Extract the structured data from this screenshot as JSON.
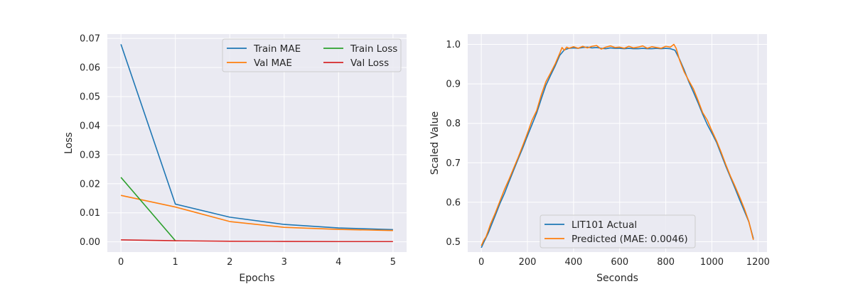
{
  "chart_data": [
    {
      "type": "line",
      "title": "",
      "xlabel": "Epochs",
      "ylabel": "Loss",
      "xlim": [
        -0.25,
        5.25
      ],
      "ylim": [
        -0.0035,
        0.0715
      ],
      "xticks": [
        0,
        1,
        2,
        3,
        4,
        5
      ],
      "yticks": [
        0.0,
        0.01,
        0.02,
        0.03,
        0.04,
        0.05,
        0.06,
        0.07
      ],
      "ytick_labels": [
        "0.00",
        "0.01",
        "0.02",
        "0.03",
        "0.04",
        "0.05",
        "0.06",
        "0.07"
      ],
      "grid": true,
      "legend": {
        "placement": "top-right",
        "columns": 2
      },
      "series": [
        {
          "name": "Train MAE",
          "color": "#1f77b4",
          "x": [
            0,
            1,
            2,
            3,
            4,
            5
          ],
          "y": [
            0.068,
            0.013,
            0.0085,
            0.006,
            0.0048,
            0.0042
          ]
        },
        {
          "name": "Val MAE",
          "color": "#ff7f0e",
          "x": [
            0,
            1,
            2,
            3,
            4,
            5
          ],
          "y": [
            0.016,
            0.012,
            0.007,
            0.005,
            0.0043,
            0.0039
          ]
        },
        {
          "name": "Train Loss",
          "color": "#2ca02c",
          "x": [
            0,
            1
          ],
          "y": [
            0.0222,
            0.0004
          ]
        },
        {
          "name": "Val Loss",
          "color": "#d62728",
          "x": [
            0,
            1,
            2,
            3,
            4,
            5
          ],
          "y": [
            0.0007,
            0.0004,
            0.0002,
            0.00015,
            0.0001,
            0.0001
          ]
        }
      ]
    },
    {
      "type": "line",
      "title": "",
      "xlabel": "Seconds",
      "ylabel": "Scaled Value",
      "xlim": [
        -59,
        1239
      ],
      "ylim": [
        0.474,
        1.026
      ],
      "xticks": [
        0,
        200,
        400,
        600,
        800,
        1000,
        1200
      ],
      "yticks": [
        0.5,
        0.6,
        0.7,
        0.8,
        0.9,
        1.0
      ],
      "ytick_labels": [
        "0.5",
        "0.6",
        "0.7",
        "0.8",
        "0.9",
        "1.0"
      ],
      "grid": true,
      "legend": {
        "placement": "lower-center",
        "columns": 1
      },
      "series": [
        {
          "name": "LIT101 Actual",
          "color": "#1f77b4",
          "x": [
            0,
            10,
            20,
            30,
            40,
            60,
            80,
            100,
            120,
            140,
            160,
            180,
            200,
            220,
            240,
            260,
            280,
            300,
            320,
            340,
            360,
            380,
            400,
            420,
            440,
            460,
            480,
            500,
            520,
            540,
            560,
            580,
            600,
            620,
            640,
            660,
            680,
            700,
            720,
            740,
            760,
            780,
            800,
            820,
            840,
            860,
            880,
            900,
            920,
            940,
            960,
            980,
            1000,
            1020,
            1040,
            1060,
            1080,
            1100,
            1120,
            1140,
            1160,
            1180
          ],
          "y": [
            0.485,
            0.498,
            0.51,
            0.522,
            0.537,
            0.566,
            0.596,
            0.622,
            0.652,
            0.681,
            0.71,
            0.738,
            0.768,
            0.797,
            0.826,
            0.862,
            0.896,
            0.921,
            0.945,
            0.972,
            0.986,
            0.99,
            0.991,
            0.99,
            0.992,
            0.993,
            0.991,
            0.992,
            0.99,
            0.989,
            0.991,
            0.99,
            0.99,
            0.989,
            0.99,
            0.989,
            0.989,
            0.99,
            0.989,
            0.989,
            0.99,
            0.989,
            0.99,
            0.989,
            0.985,
            0.962,
            0.935,
            0.905,
            0.879,
            0.852,
            0.823,
            0.797,
            0.775,
            0.752,
            0.722,
            0.692,
            0.664,
            0.636,
            0.607,
            0.579,
            0.551,
            0.508
          ]
        },
        {
          "name": "Predicted (MAE: 0.0046)",
          "color": "#ff7f0e",
          "x": [
            0,
            10,
            20,
            30,
            40,
            60,
            80,
            100,
            120,
            140,
            160,
            180,
            200,
            220,
            240,
            260,
            280,
            300,
            320,
            340,
            350,
            360,
            370,
            380,
            400,
            420,
            440,
            460,
            480,
            500,
            520,
            540,
            560,
            580,
            600,
            620,
            640,
            660,
            680,
            700,
            720,
            740,
            760,
            780,
            800,
            820,
            835,
            845,
            860,
            880,
            900,
            920,
            940,
            960,
            980,
            1000,
            1020,
            1040,
            1060,
            1080,
            1100,
            1120,
            1140,
            1160,
            1180
          ],
          "y": [
            0.49,
            0.503,
            0.512,
            0.528,
            0.545,
            0.572,
            0.602,
            0.632,
            0.658,
            0.686,
            0.714,
            0.744,
            0.775,
            0.808,
            0.832,
            0.872,
            0.905,
            0.927,
            0.95,
            0.977,
            0.992,
            0.985,
            0.993,
            0.99,
            0.994,
            0.99,
            0.995,
            0.991,
            0.995,
            0.997,
            0.988,
            0.993,
            0.996,
            0.992,
            0.993,
            0.99,
            0.995,
            0.991,
            0.993,
            0.996,
            0.99,
            0.994,
            0.992,
            0.99,
            0.995,
            0.993,
            1.0,
            0.99,
            0.96,
            0.93,
            0.908,
            0.887,
            0.858,
            0.827,
            0.808,
            0.781,
            0.756,
            0.727,
            0.696,
            0.667,
            0.641,
            0.614,
            0.585,
            0.552,
            0.505
          ]
        }
      ]
    }
  ]
}
